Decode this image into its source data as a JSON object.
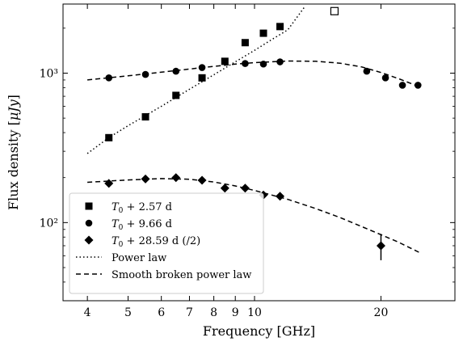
{
  "chart_data": {
    "type": "scatter",
    "x_scale": "log",
    "y_scale": "log",
    "xlabel": "Frequency [GHz]",
    "ylabel_text": "Flux density [",
    "ylabel_unit": "μJy",
    "ylabel_close": "]",
    "xlim": [
      3.5,
      30
    ],
    "ylim": [
      30,
      2900
    ],
    "x_ticks": [
      4,
      5,
      6,
      7,
      8,
      9,
      10,
      20
    ],
    "x_tick_labels": [
      "4",
      "5",
      "6",
      "7",
      "8",
      "9",
      "10",
      "20"
    ],
    "y_ticks": [
      100,
      1000
    ],
    "y_tick_labels": [
      "10²",
      "10³"
    ],
    "legend_position": "lower left",
    "series": [
      {
        "name": "T0 + 2.57 d",
        "legend_math": "T",
        "legend_sub": "0",
        "legend_rest": " + 2.57 d",
        "marker": "square",
        "x": [
          4.5,
          5.5,
          6.5,
          7.5,
          8.5,
          9.5,
          10.5,
          11.5
        ],
        "y": [
          370,
          510,
          710,
          930,
          1200,
          1600,
          1850,
          2050
        ]
      },
      {
        "name": "T0 + 9.66 d",
        "legend_math": "T",
        "legend_sub": "0",
        "legend_rest": " + 9.66 d",
        "marker": "circle",
        "x": [
          4.5,
          5.5,
          6.5,
          7.5,
          9.5,
          10.5,
          11.5,
          18.5,
          20.5,
          22.5,
          24.5
        ],
        "y": [
          930,
          980,
          1030,
          1090,
          1160,
          1150,
          1190,
          1030,
          930,
          830,
          830
        ]
      },
      {
        "name": "T0 + 28.59 d (/2)",
        "legend_math": "T",
        "legend_sub": "0",
        "legend_rest": " + 28.59 d (/2)",
        "marker": "diamond",
        "x": [
          4.5,
          5.5,
          6.5,
          7.5,
          8.5,
          9.5,
          10.5,
          11.5,
          20
        ],
        "y": [
          183,
          196,
          200,
          192,
          170,
          170,
          153,
          150,
          70
        ],
        "errors_upper": [
          0,
          0,
          0,
          0,
          0,
          0,
          0,
          0,
          14
        ],
        "errors_lower": [
          0,
          0,
          0,
          0,
          0,
          0,
          0,
          0,
          14
        ]
      },
      {
        "name": "Power law",
        "style": "dotted",
        "line_x": [
          4,
          4.5,
          5,
          5.5,
          6,
          7,
          8,
          9,
          10,
          11,
          12,
          13.2
        ],
        "line_y": [
          290,
          370,
          445,
          520,
          600,
          780,
          975,
          1190,
          1420,
          1680,
          1950,
          2810
        ]
      },
      {
        "name": "Smooth broken power law",
        "style": "dashed",
        "curves": [
          {
            "line_x": [
              4,
              5,
              6,
              7,
              8,
              9,
              10,
              12,
              14,
              16,
              18,
              20,
              22,
              25
            ],
            "line_y": [
              900,
              960,
              1015,
              1065,
              1110,
              1150,
              1175,
              1205,
              1200,
              1165,
              1100,
              1010,
              920,
              800
            ]
          },
          {
            "line_x": [
              4,
              5,
              6,
              7,
              8,
              9,
              10,
              12,
              14,
              16,
              18,
              20,
              22,
              25
            ],
            "line_y": [
              186,
              193,
              197,
              195,
              187,
              176,
              164,
              143,
              124,
              108,
              94,
              83,
              74,
              62
            ]
          }
        ]
      }
    ],
    "extra_points": [
      {
        "name": "open-square",
        "marker": "open-square",
        "x": 15.5,
        "y": 2600
      }
    ]
  }
}
